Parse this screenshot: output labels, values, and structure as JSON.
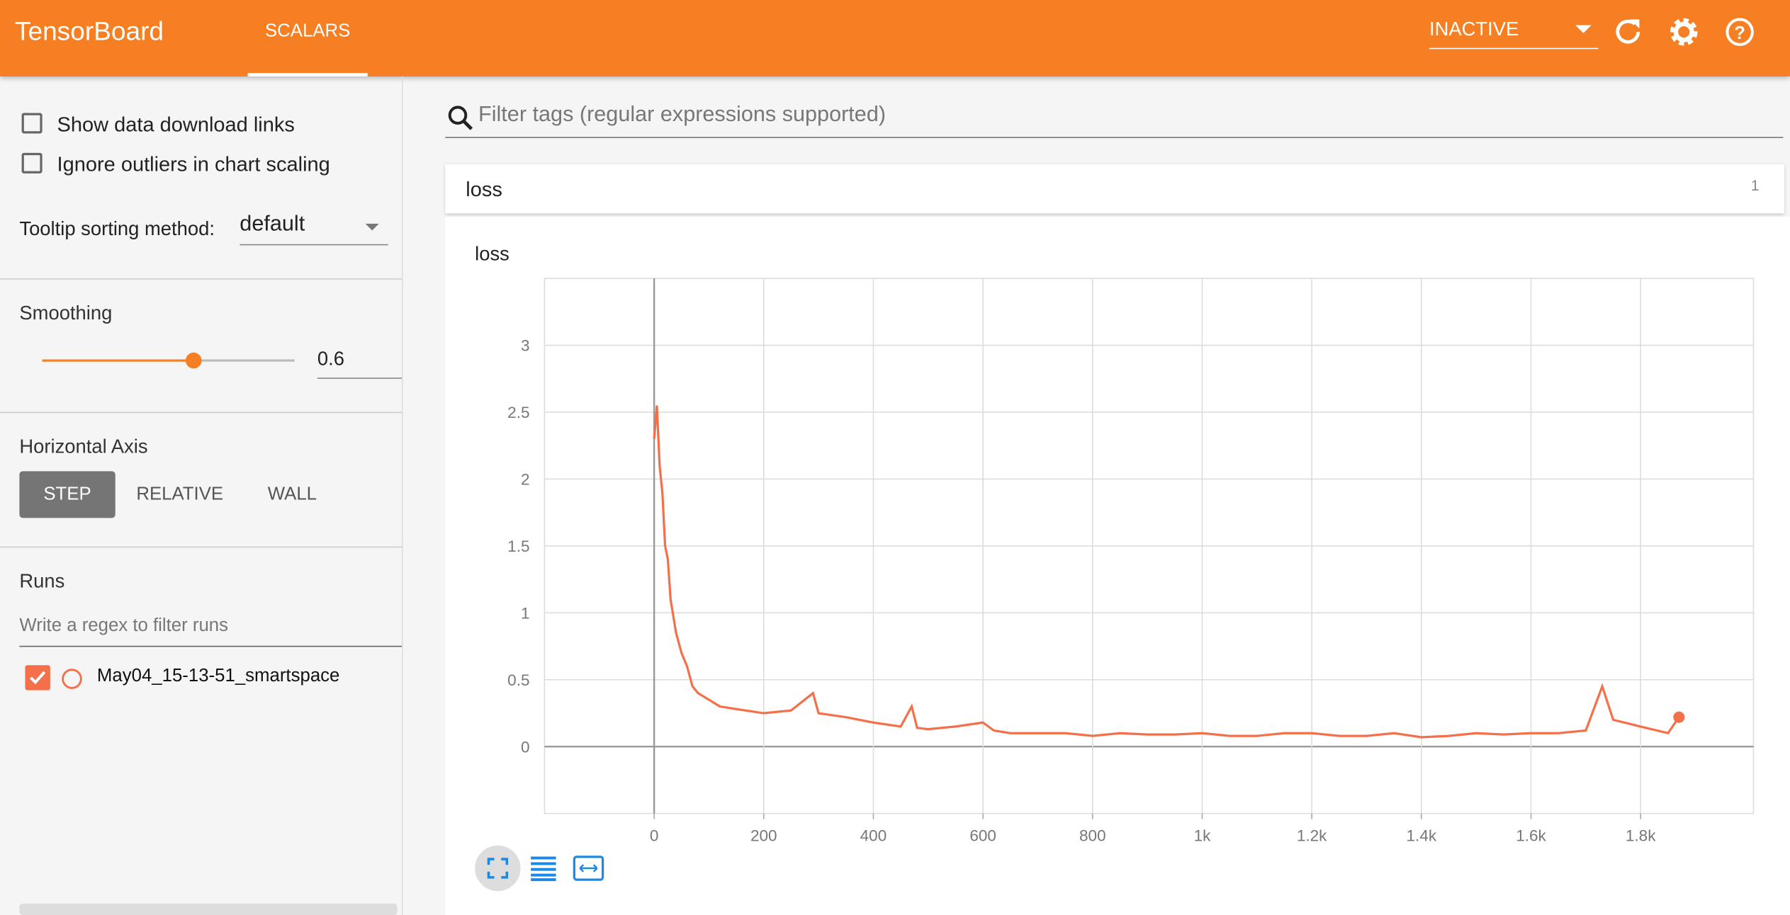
{
  "header": {
    "title": "TensorBoard",
    "tab": "SCALARS",
    "status": "INACTIVE"
  },
  "sidebar": {
    "options": [
      "Show data download links",
      "Ignore outliers in chart scaling"
    ],
    "tooltip_label": "Tooltip sorting method:",
    "tooltip_value": "default",
    "smoothing_label": "Smoothing",
    "smoothing": 0.6,
    "axis_label": "Horizontal Axis",
    "axis_options": [
      "STEP",
      "RELATIVE",
      "WALL"
    ],
    "runs_label": "Runs",
    "runs_filter": "Write a regex to filter runs",
    "runs": [
      "May04_15-13-51_smartspace"
    ]
  },
  "main": {
    "filter": "Filter tags (regular expressions supported)",
    "group": "loss",
    "group_count": 1
  },
  "chart_data": {
    "type": "line",
    "title": "loss",
    "color": "#f4704b",
    "grid": true,
    "x": [
      0,
      5,
      10,
      15,
      20,
      25,
      30,
      40,
      50,
      60,
      70,
      80,
      100,
      120,
      150,
      200,
      250,
      290,
      300,
      350,
      400,
      450,
      470,
      480,
      500,
      550,
      600,
      620,
      650,
      700,
      750,
      800,
      850,
      900,
      950,
      1000,
      1050,
      1100,
      1150,
      1200,
      1250,
      1300,
      1350,
      1400,
      1450,
      1500,
      1550,
      1600,
      1650,
      1700,
      1730,
      1750,
      1800,
      1850,
      1870
    ],
    "values": [
      2.3,
      2.55,
      2.1,
      1.9,
      1.5,
      1.4,
      1.1,
      0.85,
      0.7,
      0.6,
      0.45,
      0.4,
      0.35,
      0.3,
      0.28,
      0.25,
      0.27,
      0.4,
      0.25,
      0.22,
      0.18,
      0.15,
      0.3,
      0.14,
      0.13,
      0.15,
      0.18,
      0.12,
      0.1,
      0.1,
      0.1,
      0.08,
      0.1,
      0.09,
      0.09,
      0.1,
      0.08,
      0.08,
      0.1,
      0.1,
      0.08,
      0.08,
      0.1,
      0.07,
      0.08,
      0.1,
      0.09,
      0.1,
      0.1,
      0.12,
      0.45,
      0.2,
      0.15,
      0.1,
      0.22
    ],
    "xlim": [
      -200,
      2006
    ],
    "ylim": [
      -0.5,
      3.5
    ],
    "xticks": [
      0,
      200,
      400,
      600,
      800,
      {
        "value": 1000,
        "label": "1k"
      },
      {
        "value": 1200,
        "label": "1.2k"
      },
      {
        "value": 1400,
        "label": "1.4k"
      },
      {
        "value": 1600,
        "label": "1.6k"
      },
      {
        "value": 1800,
        "label": "1.8k"
      }
    ],
    "yticks": [
      0,
      0.5,
      1,
      1.5,
      2,
      2.5,
      3
    ]
  }
}
